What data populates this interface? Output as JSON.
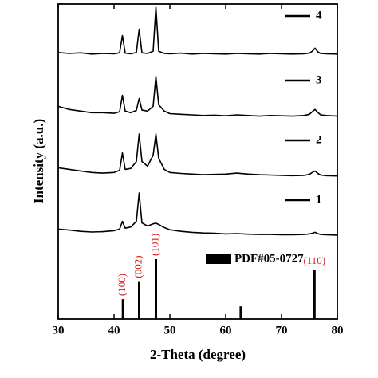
{
  "chart_data": {
    "type": "line",
    "x_label": "2-Theta (degree)",
    "y_label": "Intensity (a.u.)",
    "xlim": [
      30,
      80
    ],
    "xticks": [
      30,
      40,
      50,
      60,
      70,
      80
    ],
    "ylim": [
      0,
      100
    ],
    "x": [
      30,
      32,
      34,
      36,
      38,
      40,
      41,
      41.5,
      42,
      43,
      44,
      44.5,
      45,
      46,
      47,
      47.5,
      48,
      49,
      50,
      52,
      54,
      56,
      58,
      60,
      62,
      64,
      66,
      68,
      70,
      72,
      74,
      75,
      75.5,
      76,
      76.5,
      77,
      78,
      80
    ],
    "series": [
      {
        "name": "4",
        "color": "#000000",
        "values": [
          84.6,
          84.3,
          84.5,
          84.1,
          84.3,
          84.2,
          84.5,
          90,
          84.4,
          84.2,
          84.6,
          92,
          84.5,
          84.3,
          85,
          99,
          85,
          84.3,
          84.2,
          84.4,
          84.1,
          84.3,
          84.2,
          84.1,
          84.3,
          84.2,
          84.1,
          84.3,
          84.2,
          84.1,
          84.2,
          84.4,
          85,
          86,
          84.8,
          84.3,
          84.2,
          84.1
        ]
      },
      {
        "name": "3",
        "color": "#000000",
        "values": [
          67.5,
          66.5,
          66,
          65.5,
          65.5,
          65.3,
          65.8,
          71,
          66,
          65.5,
          66.2,
          70,
          66.3,
          66,
          67.5,
          77,
          68,
          66,
          65.2,
          65,
          64.8,
          64.6,
          64.7,
          64.5,
          64.8,
          64.6,
          64.4,
          64.6,
          64.5,
          64.4,
          64.6,
          65,
          65.8,
          66.5,
          65.6,
          64.8,
          64.6,
          64.4
        ]
      },
      {
        "name": "2",
        "color": "#000000",
        "values": [
          48,
          47.5,
          47,
          46.5,
          46.3,
          46.5,
          47.2,
          52.7,
          47.5,
          47.8,
          50,
          58.7,
          50,
          48.5,
          52,
          58.7,
          51,
          47.5,
          46.5,
          46.2,
          46,
          45.8,
          45.9,
          46,
          46.3,
          46,
          45.8,
          45.7,
          45.6,
          45.5,
          45.6,
          45.9,
          46.5,
          47,
          46.2,
          45.7,
          45.5,
          45.4
        ]
      },
      {
        "name": "1",
        "color": "#000000",
        "values": [
          28.5,
          28.2,
          27.8,
          27.6,
          27.7,
          28,
          28.5,
          31,
          28.8,
          29.2,
          31,
          40,
          30.5,
          29.5,
          30.2,
          30.4,
          30,
          29,
          28.3,
          27.8,
          27.5,
          27.3,
          27.2,
          27,
          27.1,
          26.9,
          26.8,
          26.8,
          26.7,
          26.7,
          26.8,
          27,
          27.2,
          27.5,
          27.1,
          26.8,
          26.7,
          26.6
        ]
      }
    ],
    "reference": {
      "name": "PDF#05-0727",
      "color": "#000000",
      "label_color": "#d62020",
      "x": [
        41.6,
        44.5,
        47.5,
        62.7,
        75.9
      ],
      "values": [
        6.3,
        12,
        19,
        4,
        15.7
      ],
      "labels": [
        "(100)",
        "(002)",
        "(101)",
        null,
        "(110)"
      ]
    }
  }
}
